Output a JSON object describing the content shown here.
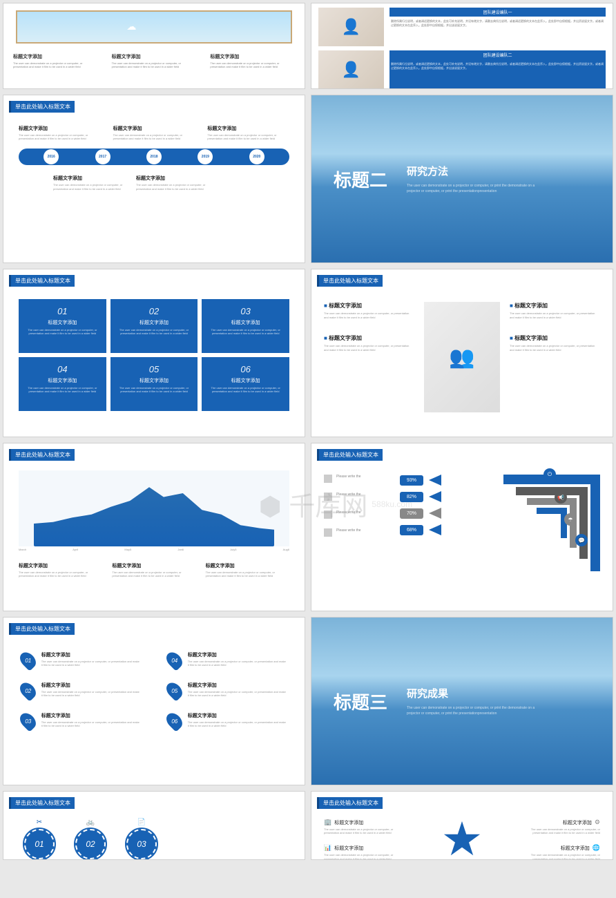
{
  "common": {
    "slide_title": "单击此处输入标题文本",
    "item_title": "标题文字添加",
    "item_desc": "The user can demonstrate on a projector or computer, or presentation and make it film to be used in a wider field",
    "primary_color": "#1862b4",
    "gray_color": "#888888"
  },
  "watermark": {
    "logo": "⬢ 千库网",
    "url": "588ku.com"
  },
  "s2": {
    "bar1": "团队建设编队一",
    "bar2": "团队建设编队二",
    "body": "删除所属行位说明，或者调适更换的文本，此处可补充说明，并设有增文字，请删去典托位说明，或者调适更换的文本在此序入。此处即中自保根据，并出资说留文字。或者调过更换的文本在此序入。此处即中自保根据，并出该说留文字。"
  },
  "s3": {
    "years": [
      "2016",
      "2017",
      "2018",
      "2019",
      "2020"
    ]
  },
  "s4": {
    "num": "标题二",
    "title": "研究方法",
    "sub": "The user can demonstrate on a projector or computer, or print the demonstrate on a projector or computer, or print the presentationpresentation"
  },
  "s5": {
    "nums": [
      "01",
      "02",
      "03",
      "04",
      "05",
      "06"
    ]
  },
  "s7": {
    "axis": [
      "March",
      "April",
      "May5",
      "Jan6",
      "July5",
      "Aug6"
    ]
  },
  "s8": {
    "left": [
      "Please write the",
      "Please write the",
      "Please write the",
      "Please write the"
    ],
    "pct": [
      "93%",
      "82%",
      "70%",
      "68%"
    ]
  },
  "s9": {
    "nums": [
      "01",
      "02",
      "03",
      "04",
      "05",
      "06"
    ]
  },
  "s10": {
    "num": "标题三",
    "title": "研究成果",
    "sub": "The user can demonstrate on a projector or computer, or print the demonstrate on a projector or computer, or print the presentationpresentation"
  },
  "s11": {
    "nums": [
      "01",
      "02",
      "03"
    ],
    "icons": [
      "✂",
      "🚲",
      "📄"
    ]
  }
}
